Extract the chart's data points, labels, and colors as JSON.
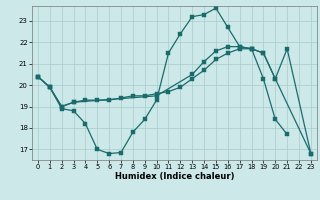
{
  "xlabel": "Humidex (Indice chaleur)",
  "bg_color": "#cce8e8",
  "grid_color": "#aacccc",
  "line_color": "#1a6b6b",
  "xlim": [
    -0.5,
    23.5
  ],
  "ylim": [
    16.5,
    23.7
  ],
  "yticks": [
    17,
    18,
    19,
    20,
    21,
    22,
    23
  ],
  "xticks": [
    0,
    1,
    2,
    3,
    4,
    5,
    6,
    7,
    8,
    9,
    10,
    11,
    12,
    13,
    14,
    15,
    16,
    17,
    18,
    19,
    20,
    21,
    22,
    23
  ],
  "s1_x": [
    0,
    1,
    2,
    3,
    4,
    5,
    6,
    7,
    8,
    9,
    10,
    11,
    12,
    13,
    14,
    15,
    16,
    17,
    18,
    19,
    20,
    21
  ],
  "s1_y": [
    20.4,
    19.9,
    18.9,
    18.8,
    18.2,
    17.0,
    16.8,
    16.85,
    17.8,
    18.4,
    19.3,
    21.5,
    22.4,
    23.2,
    23.3,
    23.6,
    22.7,
    21.8,
    21.7,
    20.3,
    18.4,
    17.7
  ],
  "s2_x": [
    0,
    1,
    2,
    3,
    4,
    5,
    6,
    7,
    8,
    9,
    10,
    11,
    12,
    13,
    14,
    15,
    16,
    17,
    18,
    19,
    20,
    23
  ],
  "s2_y": [
    20.4,
    19.9,
    19.0,
    19.2,
    19.3,
    19.3,
    19.3,
    19.4,
    19.5,
    19.5,
    19.6,
    19.7,
    19.9,
    20.3,
    20.7,
    21.2,
    21.5,
    21.7,
    21.7,
    21.5,
    20.3,
    16.8
  ],
  "s3_x": [
    0,
    1,
    2,
    3,
    10,
    13,
    14,
    15,
    16,
    17,
    18,
    19,
    20,
    21,
    23
  ],
  "s3_y": [
    20.4,
    19.9,
    19.0,
    19.2,
    19.5,
    20.5,
    21.1,
    21.6,
    21.8,
    21.8,
    21.7,
    21.5,
    20.3,
    21.7,
    16.8
  ]
}
